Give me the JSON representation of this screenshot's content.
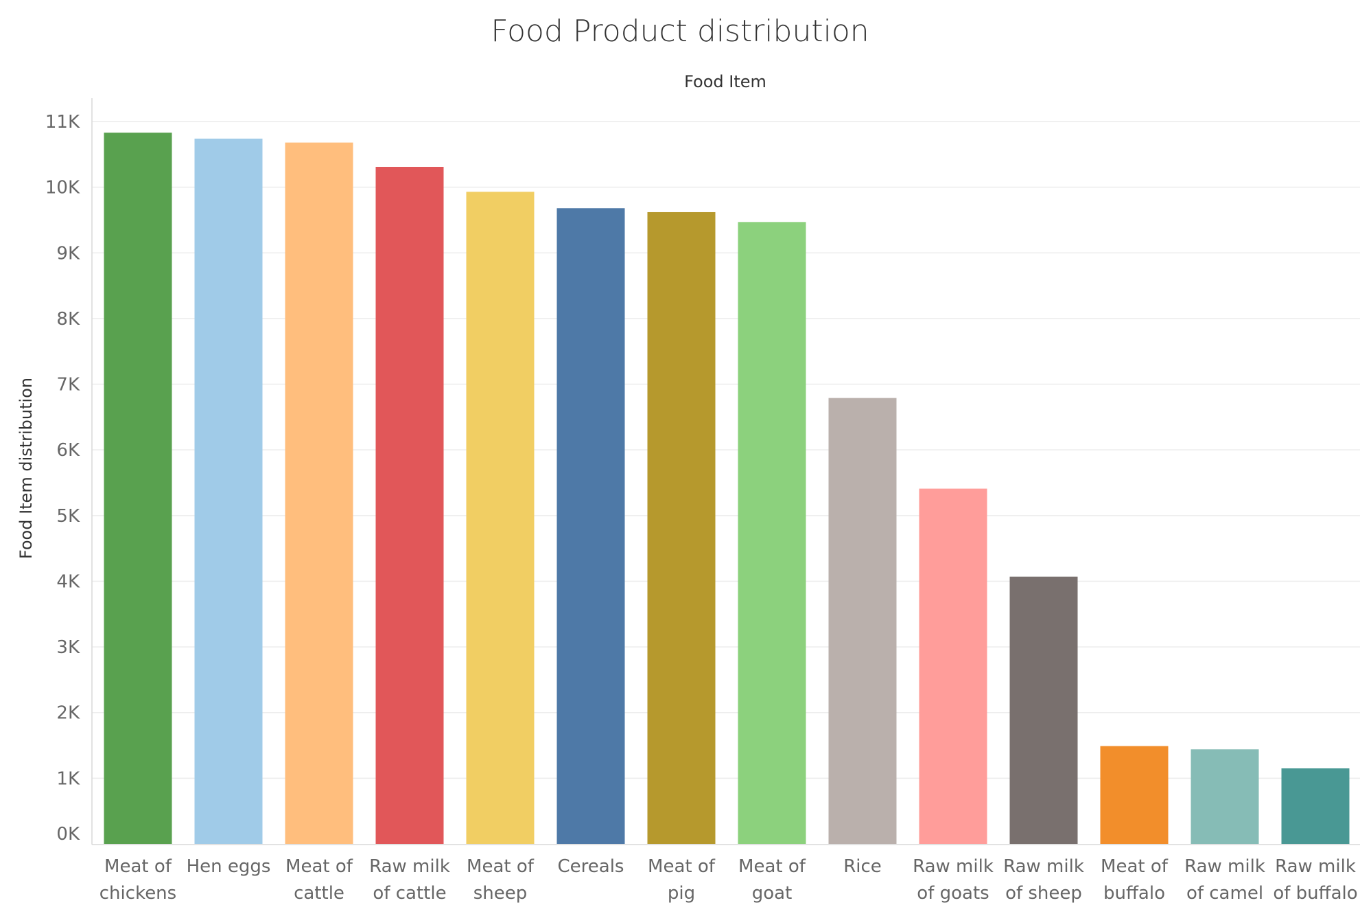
{
  "chart_data": {
    "type": "bar",
    "title": "Food Product distribution",
    "column_header": "Food Item",
    "ylabel": "Food Item distribution",
    "ylim": [
      0,
      11000
    ],
    "yticks": [
      {
        "value": 0,
        "label": "0K"
      },
      {
        "value": 1000,
        "label": "1K"
      },
      {
        "value": 2000,
        "label": "2K"
      },
      {
        "value": 3000,
        "label": "3K"
      },
      {
        "value": 4000,
        "label": "4K"
      },
      {
        "value": 5000,
        "label": "5K"
      },
      {
        "value": 6000,
        "label": "6K"
      },
      {
        "value": 7000,
        "label": "7K"
      },
      {
        "value": 8000,
        "label": "8K"
      },
      {
        "value": 9000,
        "label": "9K"
      },
      {
        "value": 10000,
        "label": "10K"
      },
      {
        "value": 11000,
        "label": "11K"
      }
    ],
    "grid": true,
    "legend": "none",
    "categories": [
      {
        "line1": "Meat of",
        "line2": "chickens"
      },
      {
        "line1": "Hen eggs",
        "line2": ""
      },
      {
        "line1": "Meat of",
        "line2": "cattle"
      },
      {
        "line1": "Raw milk",
        "line2": "of cattle"
      },
      {
        "line1": "Meat of",
        "line2": "sheep"
      },
      {
        "line1": "Cereals",
        "line2": ""
      },
      {
        "line1": "Meat of",
        "line2": "pig"
      },
      {
        "line1": "Meat of",
        "line2": "goat"
      },
      {
        "line1": "Rice",
        "line2": ""
      },
      {
        "line1": "Raw milk",
        "line2": "of goats"
      },
      {
        "line1": "Raw milk",
        "line2": "of sheep"
      },
      {
        "line1": "Meat of",
        "line2": "buffalo"
      },
      {
        "line1": "Raw milk",
        "line2": "of camel"
      },
      {
        "line1": "Raw milk",
        "line2": "of buffalo"
      }
    ],
    "values": [
      10830,
      10740,
      10680,
      10310,
      9930,
      9680,
      9620,
      9470,
      6790,
      5410,
      4070,
      1490,
      1440,
      1150
    ],
    "colors": [
      "#59a14f",
      "#a0cbe8",
      "#ffbe7d",
      "#e15759",
      "#f1ce63",
      "#4e79a7",
      "#b6992d",
      "#8cd17d",
      "#bab0ac",
      "#ff9d9a",
      "#79706e",
      "#f28e2b",
      "#86bcb6",
      "#499894"
    ]
  }
}
